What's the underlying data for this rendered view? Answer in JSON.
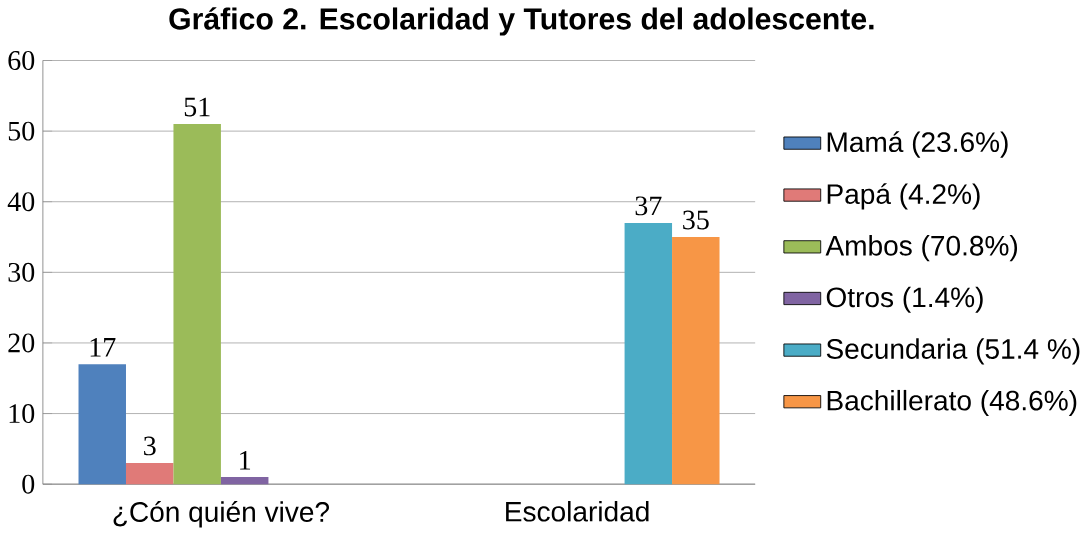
{
  "chart_data": {
    "type": "bar",
    "title": "Gráfico 2. Escolaridad y Tutores del adolescente.",
    "categories": [
      "¿Cón quién vive?",
      "Escolaridad"
    ],
    "series": [
      {
        "name": "Mamá (23.6%)",
        "color": "#4f81bd",
        "values": [
          17,
          null
        ]
      },
      {
        "name": "Papá (4.2%)",
        "color": "#e07a78",
        "values": [
          3,
          null
        ]
      },
      {
        "name": "Ambos (70.8%)",
        "color": "#9bbb59",
        "values": [
          51,
          null
        ]
      },
      {
        "name": "Otros (1.4%)",
        "color": "#8064a2",
        "values": [
          1,
          null
        ]
      },
      {
        "name": "Secundaria (51.4 %)",
        "color": "#4bacc6",
        "values": [
          null,
          37
        ]
      },
      {
        "name": "Bachillerato (48.6%)",
        "color": "#f79646",
        "values": [
          null,
          35
        ]
      }
    ],
    "ylim": [
      0,
      60
    ],
    "yticks": [
      0,
      10,
      20,
      30,
      40,
      50,
      60
    ],
    "grid": "y",
    "legend": "right",
    "data_labels": true
  }
}
